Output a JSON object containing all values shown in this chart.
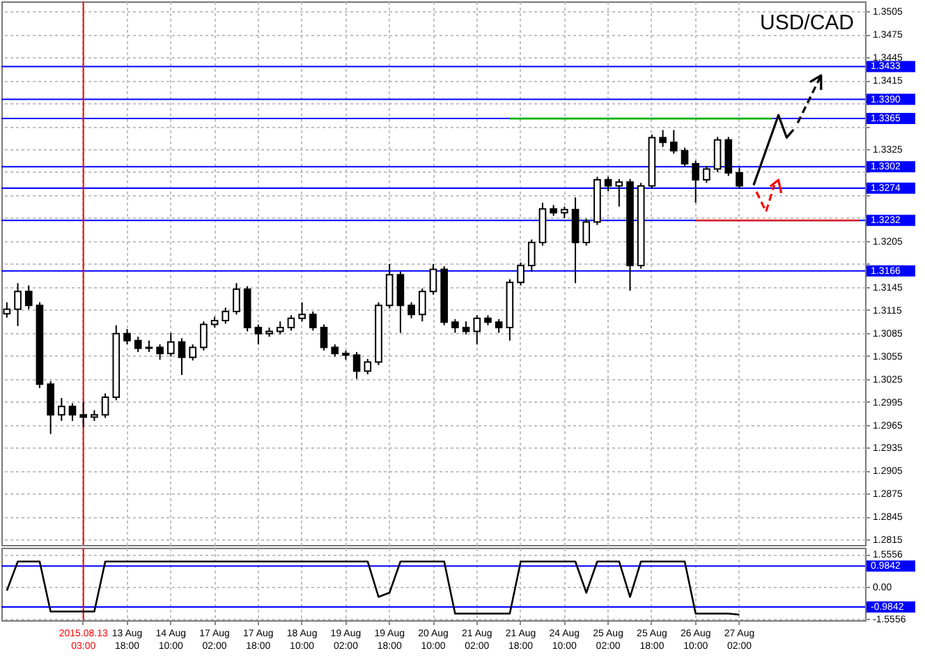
{
  "chart_data": [
    {
      "type": "candlestick",
      "title": "USD/CAD",
      "categories": [
        null,
        null,
        null,
        null,
        null,
        null,
        null,
        "2015.08.13 03:00",
        null,
        null,
        null,
        "13 Aug 18:00",
        null,
        null,
        null,
        "14 Aug 10:00",
        null,
        null,
        null,
        "17 Aug 02:00",
        null,
        null,
        null,
        "17 Aug 18:00",
        null,
        null,
        null,
        "18 Aug 10:00",
        null,
        null,
        null,
        "19 Aug 02:00",
        null,
        null,
        null,
        "19 Aug 18:00",
        null,
        null,
        null,
        "20 Aug 10:00",
        null,
        null,
        null,
        "21 Aug 02:00",
        null,
        null,
        null,
        "21 Aug 18:00",
        null,
        null,
        null,
        "24 Aug 10:00",
        null,
        null,
        null,
        "25 Aug 02:00",
        null,
        null,
        null,
        "25 Aug 18:00",
        null,
        null,
        null,
        "26 Aug 10:00",
        null,
        null,
        null,
        "27 Aug 02:00",
        null,
        null,
        null,
        null,
        null,
        null,
        null,
        null,
        null,
        null,
        null
      ],
      "ohlc": [
        [
          1.311,
          1.3125,
          1.3105,
          1.3116
        ],
        [
          1.3116,
          1.315,
          1.3094,
          1.3139
        ],
        [
          1.3139,
          1.3147,
          1.3116,
          1.3121
        ],
        [
          1.3121,
          1.3125,
          1.3013,
          1.3018
        ],
        [
          1.3018,
          1.3022,
          1.2953,
          1.2978
        ],
        [
          1.2978,
          1.3,
          1.297,
          1.2989
        ],
        [
          1.2989,
          1.2993,
          1.297,
          1.2978
        ],
        [
          1.2978,
          1.2995,
          1.2962,
          1.2975
        ],
        [
          1.2975,
          1.2984,
          1.297,
          1.2978
        ],
        [
          1.2978,
          1.3006,
          1.2974,
          1.3001
        ],
        [
          1.3001,
          1.3095,
          1.2997,
          1.3084
        ],
        [
          1.3084,
          1.309,
          1.307,
          1.3075
        ],
        [
          1.3075,
          1.308,
          1.306,
          1.3065
        ],
        [
          1.3065,
          1.3075,
          1.306,
          1.3066
        ],
        [
          1.3066,
          1.307,
          1.305,
          1.3058
        ],
        [
          1.3058,
          1.3085,
          1.3054,
          1.3073
        ],
        [
          1.3073,
          1.3078,
          1.303,
          1.3053
        ],
        [
          1.3053,
          1.307,
          1.3049,
          1.3066
        ],
        [
          1.3066,
          1.31,
          1.3062,
          1.3096
        ],
        [
          1.3096,
          1.3106,
          1.3092,
          1.3101
        ],
        [
          1.3101,
          1.3118,
          1.3097,
          1.3113
        ],
        [
          1.3113,
          1.315,
          1.3109,
          1.3142
        ],
        [
          1.3142,
          1.3146,
          1.3087,
          1.3092
        ],
        [
          1.3092,
          1.3096,
          1.307,
          1.3084
        ],
        [
          1.3084,
          1.3092,
          1.308,
          1.3087
        ],
        [
          1.3087,
          1.31,
          1.3083,
          1.3092
        ],
        [
          1.3092,
          1.3108,
          1.3088,
          1.3104
        ],
        [
          1.3104,
          1.3125,
          1.31,
          1.3109
        ],
        [
          1.3109,
          1.3113,
          1.3088,
          1.3092
        ],
        [
          1.3092,
          1.3096,
          1.3062,
          1.3066
        ],
        [
          1.3066,
          1.307,
          1.3054,
          1.3058
        ],
        [
          1.3058,
          1.3062,
          1.305,
          1.3056
        ],
        [
          1.3056,
          1.306,
          1.3025,
          1.3035
        ],
        [
          1.3035,
          1.3051,
          1.3031,
          1.3047
        ],
        [
          1.3047,
          1.3125,
          1.3043,
          1.3121
        ],
        [
          1.3121,
          1.3175,
          1.3117,
          1.3161
        ],
        [
          1.3161,
          1.3165,
          1.3085,
          1.3121
        ],
        [
          1.3121,
          1.3125,
          1.3104,
          1.3109
        ],
        [
          1.3109,
          1.3143,
          1.31,
          1.3139
        ],
        [
          1.3139,
          1.3175,
          1.3135,
          1.3168
        ],
        [
          1.3168,
          1.3172,
          1.3095,
          1.3099
        ],
        [
          1.3099,
          1.3103,
          1.3085,
          1.3092
        ],
        [
          1.3092,
          1.31,
          1.3083,
          1.3087
        ],
        [
          1.3087,
          1.3108,
          1.307,
          1.3104
        ],
        [
          1.3104,
          1.3108,
          1.3095,
          1.3099
        ],
        [
          1.3099,
          1.3103,
          1.3085,
          1.3092
        ],
        [
          1.3092,
          1.3155,
          1.3075,
          1.3151
        ],
        [
          1.3151,
          1.3177,
          1.3147,
          1.3173
        ],
        [
          1.3173,
          1.3207,
          1.3165,
          1.3203
        ],
        [
          1.3203,
          1.3255,
          1.3199,
          1.3247
        ],
        [
          1.3247,
          1.3252,
          1.3238,
          1.3242
        ],
        [
          1.3242,
          1.325,
          1.3235,
          1.3246
        ],
        [
          1.3246,
          1.3262,
          1.315,
          1.3203
        ],
        [
          1.3203,
          1.3234,
          1.3199,
          1.323
        ],
        [
          1.323,
          1.3289,
          1.3226,
          1.3285
        ],
        [
          1.3285,
          1.3289,
          1.327,
          1.3277
        ],
        [
          1.3277,
          1.3286,
          1.325,
          1.3282
        ],
        [
          1.3282,
          1.3286,
          1.314,
          1.3173
        ],
        [
          1.3173,
          1.3281,
          1.3169,
          1.3277
        ],
        [
          1.3277,
          1.3344,
          1.3273,
          1.334
        ],
        [
          1.334,
          1.335,
          1.3328,
          1.3334
        ],
        [
          1.3334,
          1.335,
          1.3319,
          1.3323
        ],
        [
          1.3323,
          1.3327,
          1.3302,
          1.3306
        ],
        [
          1.3306,
          1.331,
          1.3255,
          1.3285
        ],
        [
          1.3285,
          1.3303,
          1.3281,
          1.3299
        ],
        [
          1.3299,
          1.3341,
          1.3295,
          1.3337
        ],
        [
          1.3337,
          1.3341,
          1.329,
          1.3294
        ],
        [
          1.3294,
          1.3301,
          1.3273,
          1.3277
        ],
        null,
        null,
        null,
        null,
        null,
        null,
        null,
        null,
        null,
        null,
        null
      ],
      "series": [
        {
          "type": "line",
          "color": "#00b000",
          "values": [
            null,
            null,
            null,
            null,
            null,
            null,
            null,
            null,
            null,
            null,
            null,
            null,
            null,
            null,
            null,
            null,
            null,
            null,
            null,
            null,
            null,
            null,
            null,
            null,
            null,
            null,
            null,
            null,
            null,
            null,
            null,
            null,
            null,
            null,
            null,
            null,
            null,
            null,
            null,
            null,
            null,
            null,
            null,
            null,
            null,
            null,
            1.3365,
            1.3365,
            1.3365,
            1.3365,
            1.3365,
            1.3365,
            1.3365,
            1.3365,
            1.3365,
            1.3365,
            1.3365,
            1.3365,
            1.3365,
            1.3365,
            1.3365,
            1.3365,
            1.3365,
            1.3365,
            1.3365,
            1.3365,
            1.3365,
            1.3365,
            1.3365,
            1.3365,
            1.3365,
            null,
            null,
            null,
            null,
            null,
            null,
            null,
            null
          ]
        },
        {
          "type": "line",
          "color": "#e02020",
          "values": [
            null,
            null,
            null,
            null,
            null,
            null,
            null,
            null,
            null,
            null,
            null,
            null,
            null,
            null,
            null,
            null,
            null,
            null,
            null,
            null,
            null,
            null,
            null,
            null,
            null,
            null,
            null,
            null,
            null,
            null,
            null,
            null,
            null,
            null,
            null,
            null,
            null,
            null,
            null,
            null,
            null,
            null,
            null,
            null,
            null,
            null,
            null,
            null,
            null,
            null,
            null,
            null,
            null,
            null,
            null,
            null,
            null,
            null,
            null,
            null,
            null,
            null,
            null,
            1.3232,
            1.3232,
            1.3232,
            1.3232,
            1.3232,
            1.3232,
            1.3232,
            1.3232,
            1.3232,
            1.3232,
            1.3232,
            1.3232,
            1.3232,
            1.3232,
            1.3232,
            1.3232
          ]
        }
      ],
      "ylim": [
        1.2808,
        1.3518
      ],
      "yticks": [
        1.3505,
        1.3475,
        1.3445,
        1.3415,
        {
          "value": 1.3385,
          "label": null
        },
        {
          "value": 1.3355,
          "label": null
        },
        1.3325,
        {
          "value": 1.3295,
          "label": null
        },
        {
          "value": 1.3265,
          "label": null
        },
        {
          "value": 1.3235,
          "label": null
        },
        1.3205,
        {
          "value": 1.3175,
          "label": null
        },
        1.3145,
        1.3115,
        1.3085,
        1.3055,
        1.3025,
        1.2995,
        1.2965,
        1.2935,
        1.2905,
        1.2875,
        1.2845,
        1.2815
      ],
      "grid": true,
      "tick_labels": "y",
      "ref_lines": [
        {
          "axis": "y",
          "value": 1.3433,
          "label": "1.3433",
          "color": "#0000ff"
        },
        {
          "axis": "y",
          "value": 1.339,
          "label": "1.3390",
          "color": "#0000ff"
        },
        {
          "axis": "y",
          "value": 1.3365,
          "label": "1.3365",
          "color": "#0000ff"
        },
        {
          "axis": "y",
          "value": 1.3302,
          "label": "1.3302",
          "color": "#0000ff"
        },
        {
          "axis": "y",
          "value": 1.3274,
          "label": "1.3274",
          "color": "#0000ff"
        },
        {
          "axis": "y",
          "value": 1.3232,
          "label": "1.3232",
          "color": "#0000ff"
        },
        {
          "axis": "y",
          "value": 1.3166,
          "label": "1.3166",
          "color": "#0000ff"
        },
        {
          "axis": "x",
          "value": "2015.08.13 03:00",
          "color": "#ff0000"
        }
      ]
    },
    {
      "type": "line",
      "categories": [
        null,
        null,
        null,
        null,
        null,
        null,
        null,
        "2015.08.13 03:00",
        null,
        null,
        null,
        "13 Aug 18:00",
        null,
        null,
        null,
        "14 Aug 10:00",
        null,
        null,
        null,
        "17 Aug 02:00",
        null,
        null,
        null,
        "17 Aug 18:00",
        null,
        null,
        null,
        "18 Aug 10:00",
        null,
        null,
        null,
        "19 Aug 02:00",
        null,
        null,
        null,
        "19 Aug 18:00",
        null,
        null,
        null,
        "20 Aug 10:00",
        null,
        null,
        null,
        "21 Aug 02:00",
        null,
        null,
        null,
        "21 Aug 18:00",
        null,
        null,
        null,
        "24 Aug 10:00",
        null,
        null,
        null,
        "25 Aug 02:00",
        null,
        null,
        null,
        "25 Aug 18:00",
        null,
        null,
        null,
        "26 Aug 10:00",
        null,
        null,
        null,
        "27 Aug 02:00",
        null,
        null,
        null,
        null,
        null,
        null,
        null,
        null,
        null,
        null,
        null
      ],
      "series": [
        {
          "color": "#000000",
          "values": [
            -0.2,
            1.2,
            1.2,
            1.2,
            -1.2,
            -1.2,
            -1.2,
            -1.2,
            -1.2,
            1.2,
            1.2,
            1.2,
            1.2,
            1.2,
            1.2,
            1.2,
            1.2,
            1.2,
            1.2,
            1.2,
            1.2,
            1.2,
            1.2,
            1.2,
            1.2,
            1.2,
            1.2,
            1.2,
            1.2,
            1.2,
            1.2,
            1.2,
            1.2,
            1.2,
            -0.5,
            -0.3,
            1.2,
            1.2,
            1.2,
            1.2,
            1.2,
            -1.3,
            -1.3,
            -1.3,
            -1.3,
            -1.3,
            -1.3,
            1.2,
            1.2,
            1.2,
            1.2,
            1.2,
            1.2,
            -0.3,
            1.2,
            1.2,
            1.2,
            -0.5,
            1.2,
            1.2,
            1.2,
            1.2,
            1.2,
            -1.3,
            -1.3,
            -1.3,
            -1.3,
            -1.35,
            null,
            null,
            null,
            null,
            null,
            null,
            null,
            null,
            null,
            null,
            null
          ]
        }
      ],
      "ylim": [
        -1.62,
        1.86
      ],
      "yticks": [
        1.5556,
        {
          "value": 0,
          "label": "0.00"
        },
        -1.5556
      ],
      "grid": true,
      "ref_lines": [
        {
          "axis": "y",
          "value": 0.9842,
          "label": "0.9842",
          "color": "#0000ff"
        },
        {
          "axis": "y",
          "value": -0.9842,
          "label": "-0.9842",
          "color": "#0000ff"
        },
        {
          "axis": "x",
          "value": "2015.08.13 03:00",
          "color": "#ff0000"
        }
      ]
    }
  ]
}
